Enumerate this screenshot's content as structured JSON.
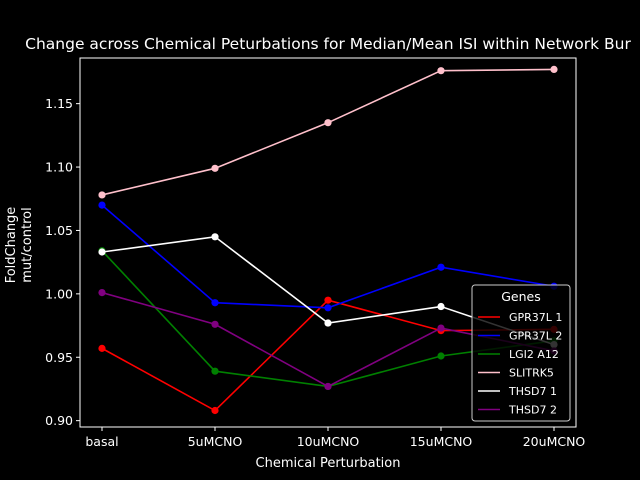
{
  "chart_data": {
    "type": "line",
    "title": "Change across Chemical Peturbations for Median/Mean ISI within Network Bur",
    "xlabel": "Chemical Perturbation",
    "ylabel": [
      "FoldChange",
      "mut/control"
    ],
    "categories": [
      "basal",
      "5uMCNO",
      "10uMCNO",
      "15uMCNO",
      "20uMCNO"
    ],
    "ylim": [
      0.895,
      1.186
    ],
    "yticks": [
      0.9,
      0.95,
      1.0,
      1.05,
      1.1,
      1.15
    ],
    "ytick_labels": [
      "0.90",
      "0.95",
      "1.00",
      "1.05",
      "1.10",
      "1.15"
    ],
    "grid": false,
    "legend_title": "Genes",
    "legend_position": "lower-right",
    "series": [
      {
        "name": "GPR37L 1",
        "color": "#ff0000",
        "values": [
          0.957,
          0.908,
          0.995,
          0.971,
          0.972
        ]
      },
      {
        "name": "GPR37L 2",
        "color": "#0000ff",
        "values": [
          1.07,
          0.993,
          0.989,
          1.021,
          1.006
        ]
      },
      {
        "name": "LGI2 A12",
        "color": "#008000",
        "values": [
          1.034,
          0.939,
          0.927,
          0.951,
          0.963
        ]
      },
      {
        "name": "SLITRK5",
        "color": "#ffc0cb",
        "values": [
          1.078,
          1.099,
          1.135,
          1.176,
          1.177
        ]
      },
      {
        "name": "THSD7 1",
        "color": "#ffffff",
        "values": [
          1.033,
          1.045,
          0.977,
          0.99,
          0.96
        ]
      },
      {
        "name": "THSD7 2",
        "color": "#800080",
        "values": [
          1.001,
          0.976,
          0.927,
          0.973,
          0.955
        ]
      }
    ]
  }
}
